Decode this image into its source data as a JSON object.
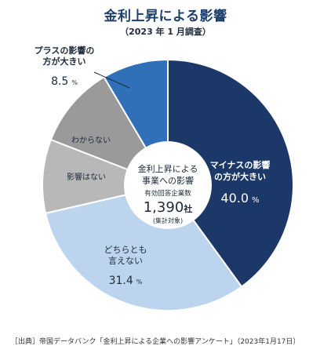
{
  "title": "金利上昇による影響",
  "subtitle": "（2023 年 1 月調査）",
  "center": {
    "line1": "金利上昇による",
    "line2": "事業への影響",
    "line3": "有効回答企業数",
    "count": "1,390",
    "count_unit": "社",
    "line4": "(集計対象)"
  },
  "footer": "［出典］帝国データバンク「金利上昇による企業への影響アンケート」（2023年1月17日）",
  "colors": {
    "negative": "#1b3868",
    "neutral": "#bcd4ee",
    "unknown1": "#b8b8b8",
    "unknown2": "#9a9a9a",
    "positive": "#2f70b8",
    "title": "#1d3f6b"
  },
  "chart_data": {
    "type": "pie",
    "slices": [
      {
        "label_lines": [
          "マイナスの影響",
          "の方が大きい"
        ],
        "value": 40.0,
        "value_text": "40.0",
        "unit": "%"
      },
      {
        "label_lines": [
          "どちらとも",
          "言えない"
        ],
        "value": 31.4,
        "value_text": "31.4",
        "unit": "%"
      },
      {
        "label_lines": [
          "影響はない"
        ],
        "value": 9.5,
        "value_text": "",
        "unit": ""
      },
      {
        "label_lines": [
          "わからない"
        ],
        "value": 10.6,
        "value_text": "",
        "unit": ""
      },
      {
        "label_lines": [
          "プラスの影響の",
          "方が大きい"
        ],
        "value": 8.5,
        "value_text": "8.5",
        "unit": "%"
      }
    ]
  }
}
